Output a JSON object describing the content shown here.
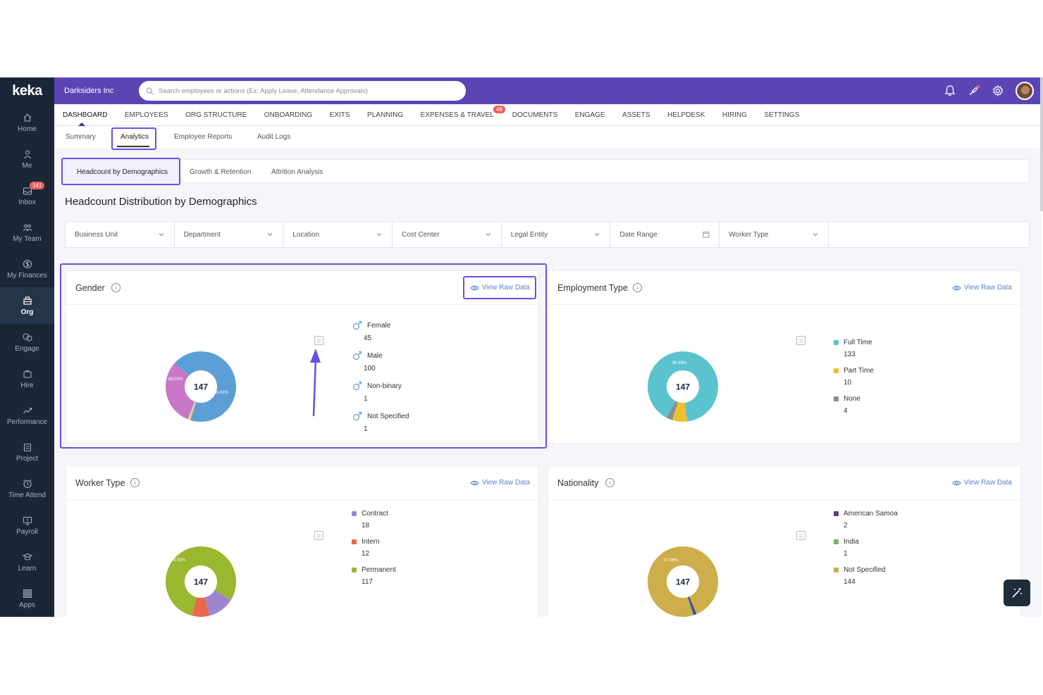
{
  "sidebar": {
    "logo": "keka",
    "items": [
      {
        "label": "Home",
        "icon": "home-icon"
      },
      {
        "label": "Me",
        "icon": "user-icon"
      },
      {
        "label": "Inbox",
        "icon": "inbox-icon",
        "badge": "141"
      },
      {
        "label": "My Team",
        "icon": "team-icon"
      },
      {
        "label": "My Finances",
        "icon": "finance-icon"
      },
      {
        "label": "Org",
        "icon": "org-icon",
        "active": true
      },
      {
        "label": "Engage",
        "icon": "engage-icon"
      },
      {
        "label": "Hire",
        "icon": "hire-icon"
      },
      {
        "label": "Performance",
        "icon": "performance-icon"
      },
      {
        "label": "Project",
        "icon": "project-icon"
      },
      {
        "label": "Time Attend",
        "icon": "clock-icon"
      },
      {
        "label": "Payroll",
        "icon": "payroll-icon"
      },
      {
        "label": "Learn",
        "icon": "learn-icon"
      },
      {
        "label": "Apps",
        "icon": "apps-icon"
      }
    ]
  },
  "topbar": {
    "company": "Darksiders Inc",
    "search_placeholder": "Search employees or actions (Ex: Apply Leave, Attendance Approvals)"
  },
  "mainnav": {
    "items": [
      "DASHBOARD",
      "EMPLOYEES",
      "ORG STRUCTURE",
      "ONBOARDING",
      "EXITS",
      "PLANNING",
      "EXPENSES & TRAVEL",
      "DOCUMENTS",
      "ENGAGE",
      "ASSETS",
      "HELPDESK",
      "HIRING",
      "SETTINGS"
    ],
    "expenses_badge": "48"
  },
  "subnav": {
    "items": [
      "Summary",
      "Analytics",
      "Employee Reports",
      "Audit Logs"
    ]
  },
  "tabs": {
    "items": [
      "Headcount by Demographics",
      "Growth & Retention",
      "Attrition Analysis"
    ]
  },
  "page_title": "Headcount Distribution by Demographics",
  "filters": [
    "Business Unit",
    "Department",
    "Location",
    "Cost Center",
    "Legal Entity",
    "Date Range",
    "Worker Type"
  ],
  "raw_label": "View Raw Data",
  "colors": {
    "accent": "#5b45b5",
    "highlight": "#6c4fe0",
    "female": "#c878c6",
    "male": "#5c9fd6",
    "nonbinary": "#e7b24c",
    "not_specified": "#d8d8d8",
    "full_time": "#5bc3cf",
    "part_time": "#f0bf2d",
    "none": "#8c8c96",
    "contract": "#9d86cf",
    "intern": "#e9694c",
    "permanent": "#99b72f",
    "american_samoa": "#5a3d8a",
    "india": "#73b869",
    "nat_not_specified": "#cdae4b"
  },
  "charts": {
    "gender": {
      "title": "Gender",
      "total": "147",
      "labels": {
        "a": "68.03%",
        "b": "30.61%"
      },
      "legend": [
        {
          "name": "Female",
          "value": "45"
        },
        {
          "name": "Male",
          "value": "100"
        },
        {
          "name": "Non-binary",
          "value": "1"
        },
        {
          "name": "Not Specified",
          "value": "1"
        }
      ]
    },
    "employment": {
      "title": "Employment Type",
      "total": "147",
      "labels": {
        "a": "90.48%"
      },
      "legend": [
        {
          "name": "Full Time",
          "value": "133"
        },
        {
          "name": "Part Time",
          "value": "10"
        },
        {
          "name": "None",
          "value": "4"
        }
      ]
    },
    "worker": {
      "title": "Worker Type",
      "total": "147",
      "labels": {
        "a": "79.59%"
      },
      "legend": [
        {
          "name": "Contract",
          "value": "18"
        },
        {
          "name": "Intern",
          "value": "12"
        },
        {
          "name": "Permanent",
          "value": "117"
        }
      ]
    },
    "nationality": {
      "title": "Nationality",
      "total": "147",
      "labels": {
        "a": "97.96%"
      },
      "legend": [
        {
          "name": "American Samoa",
          "value": "2"
        },
        {
          "name": "India",
          "value": "1"
        },
        {
          "name": "Not Specified",
          "value": "144"
        }
      ]
    }
  },
  "chart_data": [
    {
      "type": "pie",
      "title": "Gender",
      "categories": [
        "Female",
        "Male",
        "Non-binary",
        "Not Specified"
      ],
      "values": [
        45,
        100,
        1,
        1
      ],
      "center_label": "147"
    },
    {
      "type": "pie",
      "title": "Employment Type",
      "categories": [
        "Full Time",
        "Part Time",
        "None"
      ],
      "values": [
        133,
        10,
        4
      ],
      "center_label": "147"
    },
    {
      "type": "pie",
      "title": "Worker Type",
      "categories": [
        "Contract",
        "Intern",
        "Permanent"
      ],
      "values": [
        18,
        12,
        117
      ],
      "center_label": "147"
    },
    {
      "type": "pie",
      "title": "Nationality",
      "categories": [
        "American Samoa",
        "India",
        "Not Specified"
      ],
      "values": [
        2,
        1,
        144
      ],
      "center_label": "147"
    }
  ]
}
